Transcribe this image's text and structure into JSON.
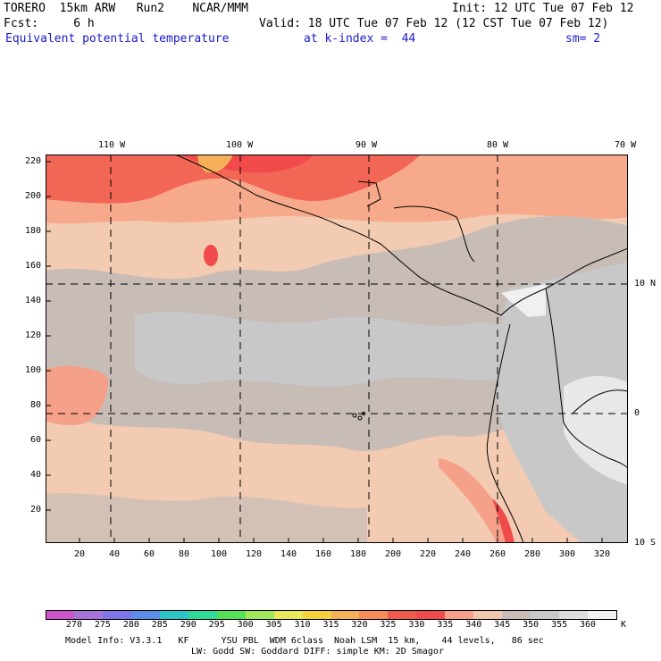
{
  "header": {
    "title_left": "TORERO  15km ARW   Run2    NCAR/MMM",
    "init": "Init: 12 UTC Tue 07 Feb 12",
    "fcst": "Fcst:     6 h",
    "valid": "Valid: 18 UTC Tue 07 Feb 12 (12 CST Tue 07 Feb 12)",
    "field": "Equivalent potential temperature",
    "level": "at k-index =  44",
    "smooth": "sm= 2"
  },
  "top_axis": [
    "110 W",
    "100 W",
    "90 W",
    "80 W",
    "70 W"
  ],
  "right_axis": [
    "10 N",
    "0",
    "10 S"
  ],
  "left_axis": [
    "220",
    "200",
    "180",
    "160",
    "140",
    "120",
    "100",
    "80",
    "60",
    "40",
    "20"
  ],
  "bottom_axis": [
    "20",
    "40",
    "60",
    "80",
    "100",
    "120",
    "140",
    "160",
    "180",
    "200",
    "220",
    "240",
    "260",
    "280",
    "300",
    "320"
  ],
  "colorbar": {
    "labels": [
      "270",
      "275",
      "280",
      "285",
      "290",
      "295",
      "300",
      "305",
      "310",
      "315",
      "320",
      "325",
      "330",
      "335",
      "340",
      "345",
      "350",
      "355",
      "360"
    ],
    "unit": "K",
    "colors": [
      "#cc55cc",
      "#a673d9",
      "#7d75e8",
      "#5b8ce8",
      "#2ec5c5",
      "#2edb98",
      "#55e055",
      "#a0e85a",
      "#e8e85a",
      "#f5d23c",
      "#f5b05a",
      "#f58c5a",
      "#f05a4a",
      "#f04a4a",
      "#f5a088",
      "#f0c8b0",
      "#c8bcb6",
      "#c8c8c8",
      "#dcdcdc",
      "#f0f0f0"
    ]
  },
  "footer": {
    "line1": "Model Info: V3.3.1   KF      YSU PBL  WDM 6class  Noah LSM  15 km,    44 levels,   86 sec",
    "line2": "LW: Godd SW: Goddard DIFF: simple KM: 2D Smagor"
  }
}
